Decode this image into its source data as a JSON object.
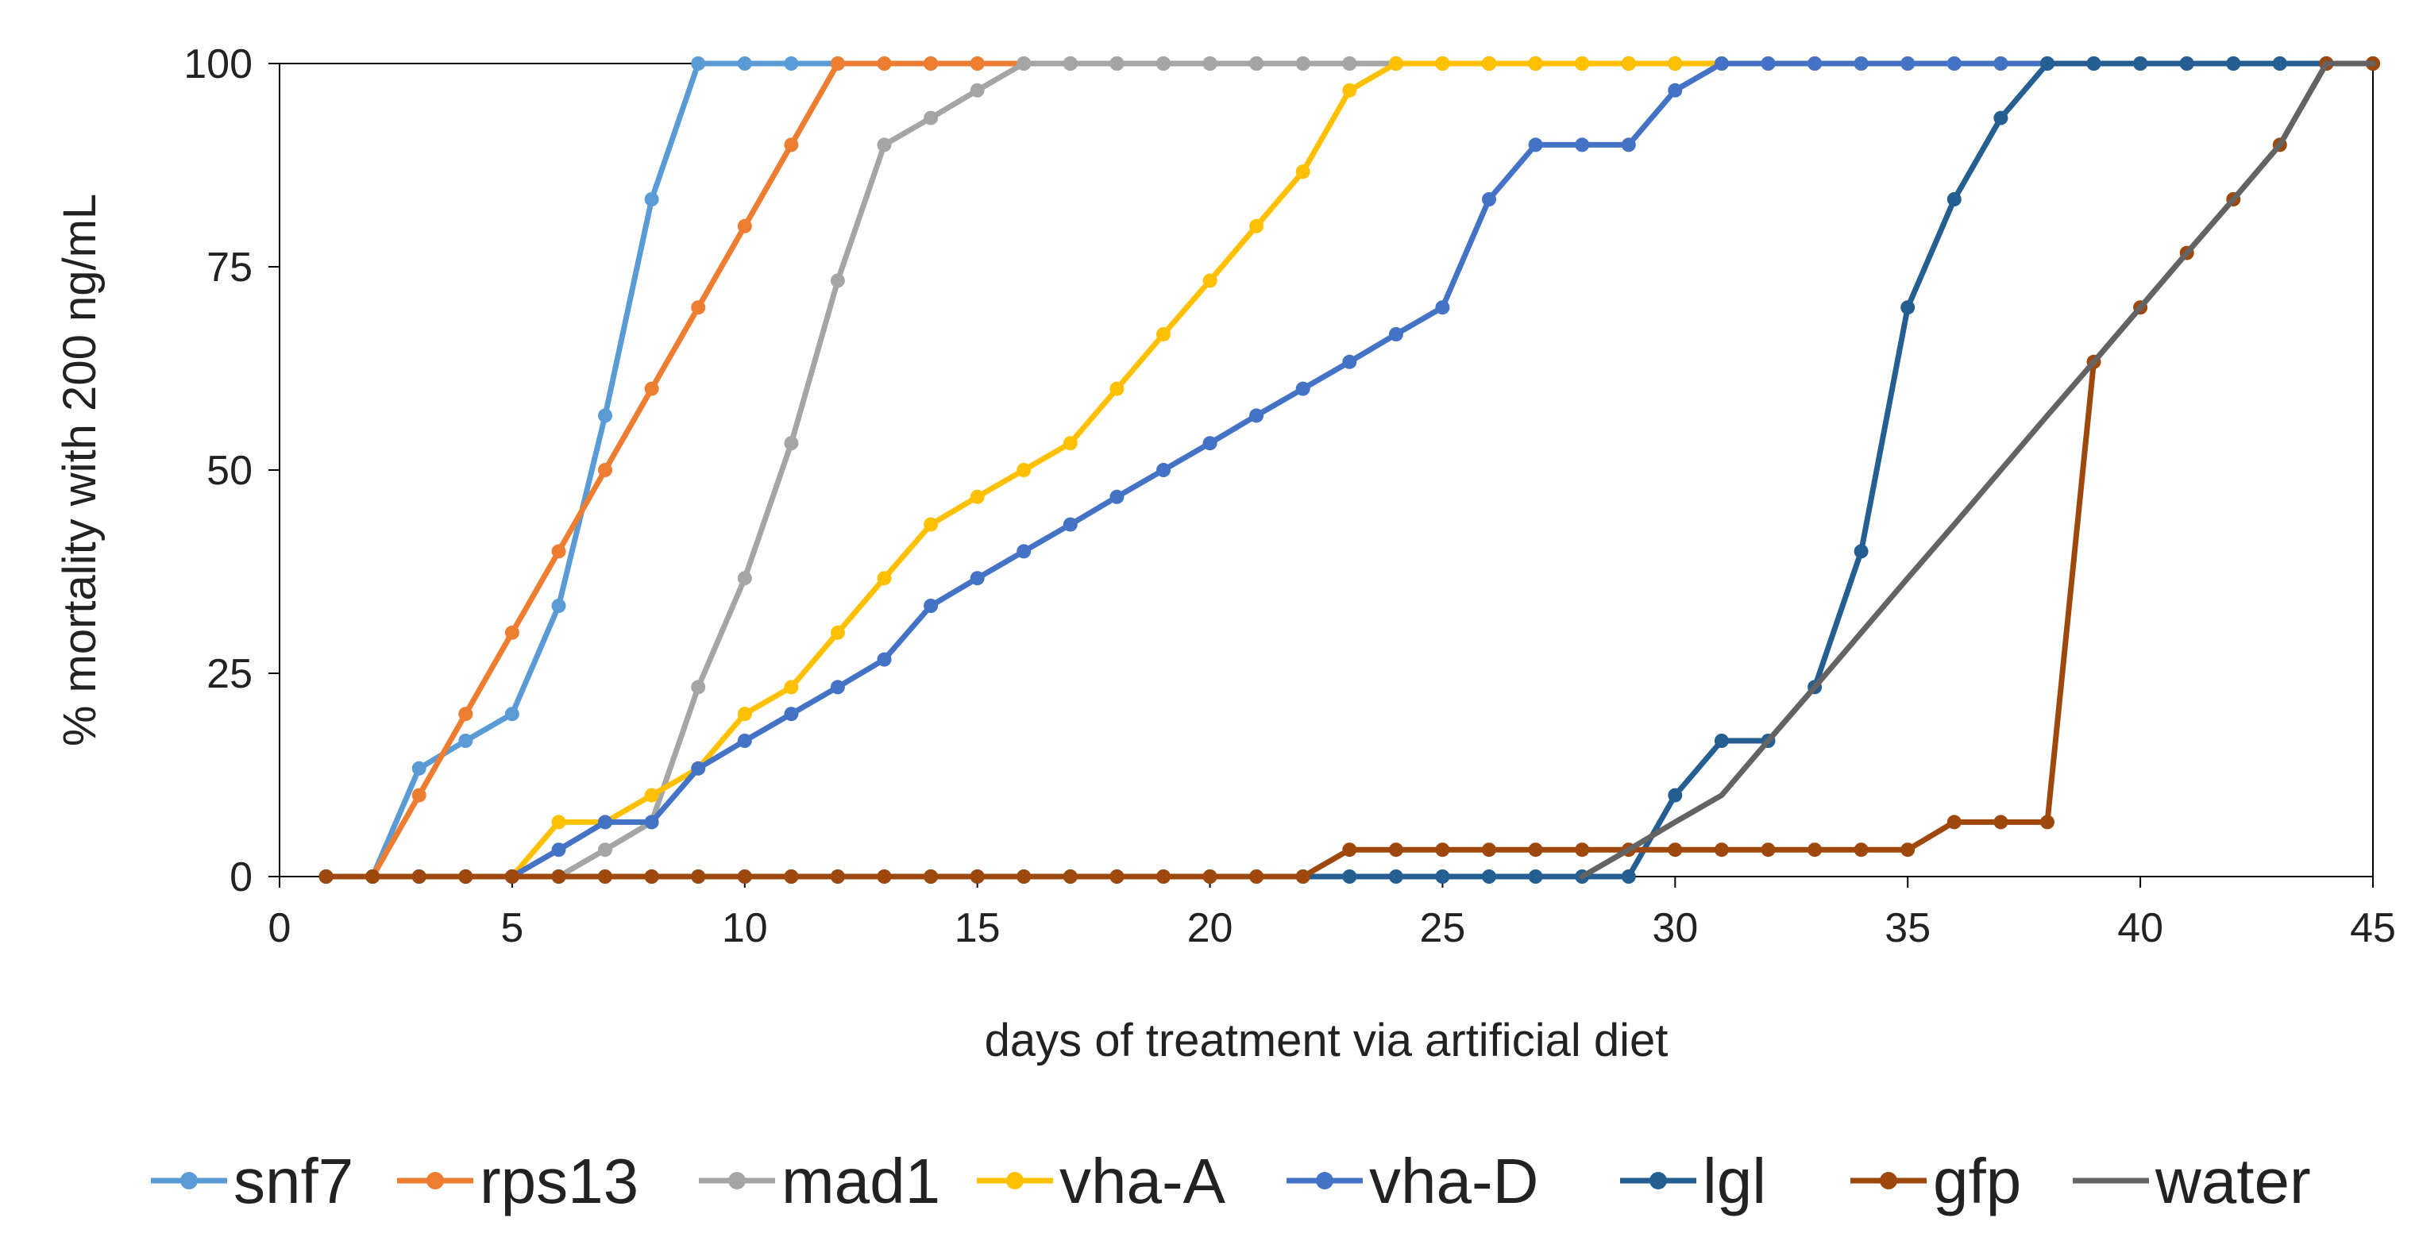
{
  "chart_data": {
    "type": "line",
    "title": "",
    "xlabel": "days of treatment via artificial diet",
    "ylabel": "% mortality with 200 ng/mL",
    "xlim": [
      0,
      45
    ],
    "ylim": [
      0,
      100
    ],
    "x_ticks": [
      0,
      5,
      10,
      15,
      20,
      25,
      30,
      35,
      40,
      45
    ],
    "y_ticks": [
      0,
      25,
      50,
      75,
      100
    ],
    "grid": false,
    "legend_position": "bottom",
    "series": [
      {
        "name": "snf7",
        "color": "#5B9BD5",
        "x": [
          1,
          2,
          3,
          4,
          5,
          6,
          7,
          8,
          9,
          10,
          11,
          12,
          13,
          14,
          15,
          16,
          17,
          18,
          19,
          20,
          21,
          22,
          23,
          24,
          25,
          26,
          27,
          28,
          29,
          30,
          31,
          32,
          33,
          34,
          35,
          36,
          37,
          38,
          39,
          40,
          41,
          42,
          43,
          44,
          45
        ],
        "y": [
          0,
          0,
          13.3,
          16.7,
          20,
          33.3,
          56.7,
          83.3,
          100,
          100,
          100,
          100,
          100,
          100,
          100,
          100,
          100,
          100,
          100,
          100,
          100,
          100,
          100,
          100,
          100,
          100,
          100,
          100,
          100,
          100,
          100,
          100,
          100,
          100,
          100,
          100,
          100,
          100,
          100,
          100,
          100,
          100,
          100,
          100,
          100
        ]
      },
      {
        "name": "rps13",
        "color": "#ED7D31",
        "x": [
          1,
          2,
          3,
          4,
          5,
          6,
          7,
          8,
          9,
          10,
          11,
          12,
          13,
          14,
          15,
          16,
          17,
          18,
          19,
          20,
          21,
          22,
          23,
          24,
          25,
          26,
          27,
          28,
          29,
          30,
          31,
          32,
          33,
          34,
          35,
          36,
          37,
          38,
          39,
          40,
          41,
          42,
          43,
          44,
          45
        ],
        "y": [
          0,
          0,
          10,
          20,
          30,
          40,
          50,
          60,
          70,
          80,
          90,
          100,
          100,
          100,
          100,
          100,
          100,
          100,
          100,
          100,
          100,
          100,
          100,
          100,
          100,
          100,
          100,
          100,
          100,
          100,
          100,
          100,
          100,
          100,
          100,
          100,
          100,
          100,
          100,
          100,
          100,
          100,
          100,
          100,
          100
        ]
      },
      {
        "name": "mad1",
        "color": "#A5A5A5",
        "x": [
          1,
          2,
          3,
          4,
          5,
          6,
          7,
          8,
          9,
          10,
          11,
          12,
          13,
          14,
          15,
          16,
          17,
          18,
          19,
          20,
          21,
          22,
          23,
          24,
          25,
          26,
          27,
          28,
          29,
          30,
          31,
          32,
          33,
          34,
          35,
          36,
          37,
          38,
          39,
          40,
          41,
          42,
          43,
          44,
          45
        ],
        "y": [
          0,
          0,
          0,
          0,
          0,
          0,
          3.3,
          6.7,
          23.3,
          36.7,
          53.3,
          73.3,
          90,
          93.3,
          96.7,
          100,
          100,
          100,
          100,
          100,
          100,
          100,
          100,
          100,
          100,
          100,
          100,
          100,
          100,
          100,
          100,
          100,
          100,
          100,
          100,
          100,
          100,
          100,
          100,
          100,
          100,
          100,
          100,
          100,
          100
        ]
      },
      {
        "name": "vha-A",
        "color": "#FFC000",
        "x": [
          1,
          2,
          3,
          4,
          5,
          6,
          7,
          8,
          9,
          10,
          11,
          12,
          13,
          14,
          15,
          16,
          17,
          18,
          19,
          20,
          21,
          22,
          23,
          24,
          25,
          26,
          27,
          28,
          29,
          30,
          31,
          32,
          33,
          34,
          35,
          36,
          37,
          38,
          39,
          40,
          41,
          42,
          43,
          44,
          45
        ],
        "y": [
          0,
          0,
          0,
          0,
          0,
          6.7,
          6.7,
          10,
          13.3,
          20,
          23.3,
          30,
          36.7,
          43.3,
          46.7,
          50,
          53.3,
          60,
          66.7,
          73.3,
          80,
          86.7,
          96.7,
          100,
          100,
          100,
          100,
          100,
          100,
          100,
          100,
          100,
          100,
          100,
          100,
          100,
          100,
          100,
          100,
          100,
          100,
          100,
          100,
          100,
          100
        ]
      },
      {
        "name": "vha-D",
        "color": "#4472C4",
        "x": [
          1,
          2,
          3,
          4,
          5,
          6,
          7,
          8,
          9,
          10,
          11,
          12,
          13,
          14,
          15,
          16,
          17,
          18,
          19,
          20,
          21,
          22,
          23,
          24,
          25,
          26,
          27,
          28,
          29,
          30,
          31,
          32,
          33,
          34,
          35,
          36,
          37,
          38,
          39,
          40,
          41,
          42,
          43,
          44,
          45
        ],
        "y": [
          0,
          0,
          0,
          0,
          0,
          3.3,
          6.7,
          6.7,
          13.3,
          16.7,
          20,
          23.3,
          26.7,
          33.3,
          36.7,
          40,
          43.3,
          46.7,
          50,
          53.3,
          56.7,
          60,
          63.3,
          66.7,
          70,
          83.3,
          90,
          90,
          90,
          96.7,
          100,
          100,
          100,
          100,
          100,
          100,
          100,
          100,
          100,
          100,
          100,
          100,
          100,
          100,
          100
        ]
      },
      {
        "name": "lgl",
        "color": "#255E91",
        "x": [
          1,
          2,
          3,
          4,
          5,
          6,
          7,
          8,
          9,
          10,
          11,
          12,
          13,
          14,
          15,
          16,
          17,
          18,
          19,
          20,
          21,
          22,
          23,
          24,
          25,
          26,
          27,
          28,
          29,
          30,
          31,
          32,
          33,
          34,
          35,
          36,
          37,
          38,
          39,
          40,
          41,
          42,
          43,
          44,
          45
        ],
        "y": [
          0,
          0,
          0,
          0,
          0,
          0,
          0,
          0,
          0,
          0,
          0,
          0,
          0,
          0,
          0,
          0,
          0,
          0,
          0,
          0,
          0,
          0,
          0,
          0,
          0,
          0,
          0,
          0,
          0,
          10,
          16.7,
          16.7,
          23.3,
          40,
          70,
          83.3,
          93.3,
          100,
          100,
          100,
          100,
          100,
          100,
          100,
          100
        ]
      },
      {
        "name": "gfp",
        "color": "#9E480E",
        "x": [
          1,
          2,
          3,
          4,
          5,
          6,
          7,
          8,
          9,
          10,
          11,
          12,
          13,
          14,
          15,
          16,
          17,
          18,
          19,
          20,
          21,
          22,
          23,
          24,
          25,
          26,
          27,
          28,
          29,
          30,
          31,
          32,
          33,
          34,
          35,
          36,
          37,
          38,
          39,
          40,
          41,
          42,
          43,
          44,
          45
        ],
        "y": [
          0,
          0,
          0,
          0,
          0,
          0,
          0,
          0,
          0,
          0,
          0,
          0,
          0,
          0,
          0,
          0,
          0,
          0,
          0,
          0,
          0,
          0,
          3.3,
          3.3,
          3.3,
          3.3,
          3.3,
          3.3,
          3.3,
          3.3,
          3.3,
          3.3,
          3.3,
          3.3,
          3.3,
          6.7,
          6.7,
          6.7,
          63.3,
          70,
          76.7,
          83.3,
          90,
          100,
          100
        ]
      },
      {
        "name": "water",
        "color": "#636363",
        "x": [
          28,
          29,
          30,
          31,
          32,
          33,
          34,
          35,
          36,
          37,
          38,
          39,
          40,
          41,
          42,
          43,
          44,
          45
        ],
        "y": [
          0,
          3.3,
          6.7,
          10,
          16.7,
          23.3,
          30,
          36.7,
          43.3,
          50,
          56.7,
          63.3,
          70,
          76.7,
          83.3,
          90,
          100,
          100
        ],
        "markers": false
      }
    ]
  }
}
